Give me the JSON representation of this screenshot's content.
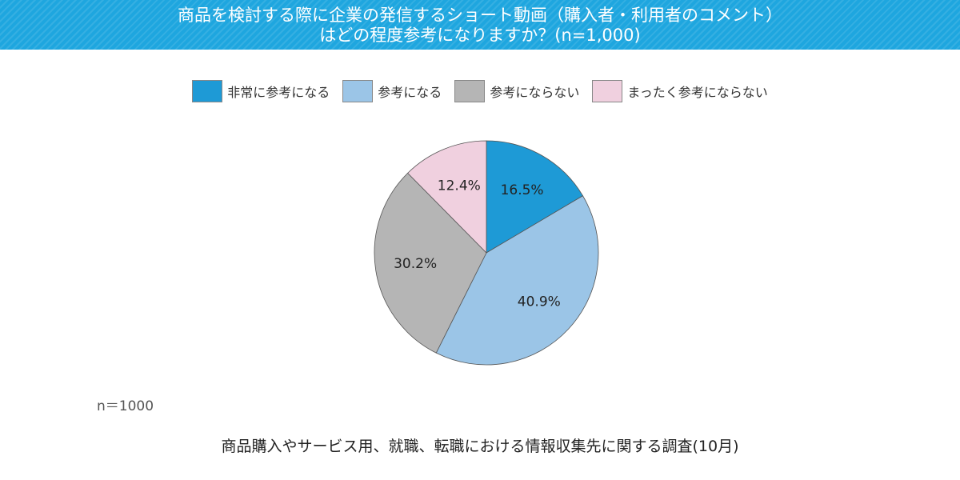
{
  "header": {
    "title_line1": "商品を検討する際に企業の発信するショート動画（購入者・利用者のコメント）",
    "title_line2": "はどの程度参考になりますか？(n=1,000)"
  },
  "chart_data": {
    "type": "pie",
    "categories": [
      "非常に参考になる",
      "参考になる",
      "参考にならない",
      "まったく参考にならない"
    ],
    "values": [
      16.5,
      40.9,
      30.2,
      12.4
    ],
    "value_labels": [
      "16.5%",
      "40.9%",
      "30.2%",
      "12.4%"
    ],
    "colors": [
      "#1e9ad6",
      "#9bc5e7",
      "#b5b5b5",
      "#f0d0df"
    ],
    "start": "12 o'clock, clockwise",
    "legend_position": "top"
  },
  "sample_label": "n＝1000",
  "footnote": "商品購入やサービス用、就職、転職における情報収集先に関する調査(10月)"
}
